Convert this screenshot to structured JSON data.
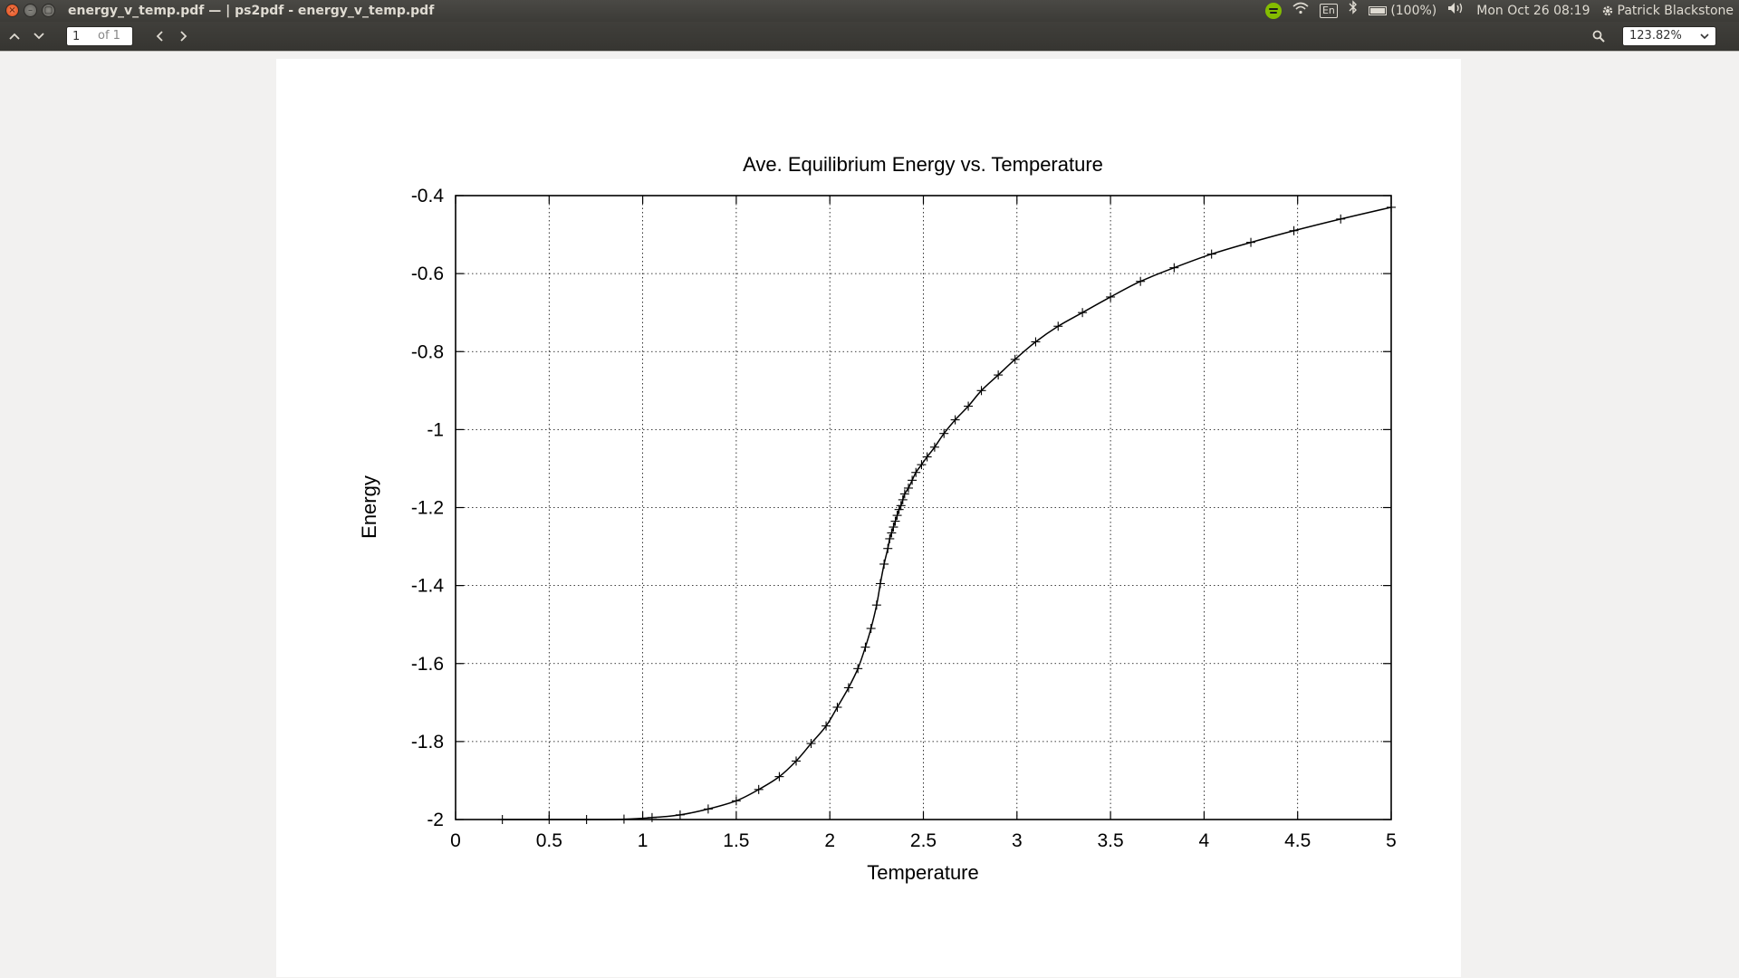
{
  "window": {
    "title": "energy_v_temp.pdf — | ps2pdf - energy_v_temp.pdf",
    "close_glyph": "×",
    "min_glyph": "–",
    "max_glyph": "▢"
  },
  "indicators": {
    "keyboard_layout": "En",
    "battery": "(100%)",
    "datetime": "Mon Oct 26 08:19",
    "user": "Patrick Blackstone"
  },
  "toolbar": {
    "page_value": "1",
    "page_count": "of 1",
    "zoom": "123.82%"
  },
  "icons": {
    "up": "‹",
    "down": "›",
    "prev": "‹",
    "next": "›",
    "chevron": "⌄"
  },
  "chart_data": {
    "type": "line",
    "title": "Ave. Equilibrium Energy vs. Temperature",
    "xlabel": "Temperature",
    "ylabel": "Energy",
    "xlim": [
      0,
      5
    ],
    "ylim": [
      -2,
      -0.4
    ],
    "xticks": [
      "0",
      "0.5",
      "1",
      "1.5",
      "2",
      "2.5",
      "3",
      "3.5",
      "4",
      "4.5",
      "5"
    ],
    "yticks": [
      "-0.4",
      "-0.6",
      "-0.8",
      "-1",
      "-1.2",
      "-1.4",
      "-1.6",
      "-1.8",
      "-2"
    ],
    "grid": true,
    "series": [
      {
        "marker": "+",
        "line": "solid",
        "x": [
          0.25,
          0.5,
          0.7,
          0.9,
          1.05,
          1.2,
          1.35,
          1.5,
          1.62,
          1.73,
          1.82,
          1.9,
          1.98,
          2.04,
          2.1,
          2.15,
          2.19,
          2.22,
          2.25,
          2.27,
          2.29,
          2.31,
          2.32,
          2.33,
          2.34,
          2.35,
          2.36,
          2.37,
          2.38,
          2.39,
          2.4,
          2.42,
          2.44,
          2.46,
          2.49,
          2.52,
          2.56,
          2.61,
          2.67,
          2.74,
          2.81,
          2.9,
          2.99,
          3.1,
          3.22,
          3.35,
          3.5,
          3.66,
          3.84,
          4.04,
          4.25,
          4.48,
          4.73,
          5.0
        ],
        "y": [
          -2.0,
          -2.0,
          -2.0,
          -1.999,
          -1.995,
          -1.988,
          -1.973,
          -1.952,
          -1.923,
          -1.89,
          -1.85,
          -1.805,
          -1.76,
          -1.712,
          -1.662,
          -1.613,
          -1.558,
          -1.51,
          -1.45,
          -1.395,
          -1.345,
          -1.305,
          -1.28,
          -1.265,
          -1.25,
          -1.235,
          -1.22,
          -1.205,
          -1.195,
          -1.18,
          -1.165,
          -1.15,
          -1.13,
          -1.11,
          -1.09,
          -1.07,
          -1.045,
          -1.01,
          -0.975,
          -0.94,
          -0.9,
          -0.86,
          -0.82,
          -0.775,
          -0.735,
          -0.7,
          -0.66,
          -0.62,
          -0.585,
          -0.55,
          -0.52,
          -0.49,
          -0.46,
          -0.43
        ]
      }
    ]
  }
}
